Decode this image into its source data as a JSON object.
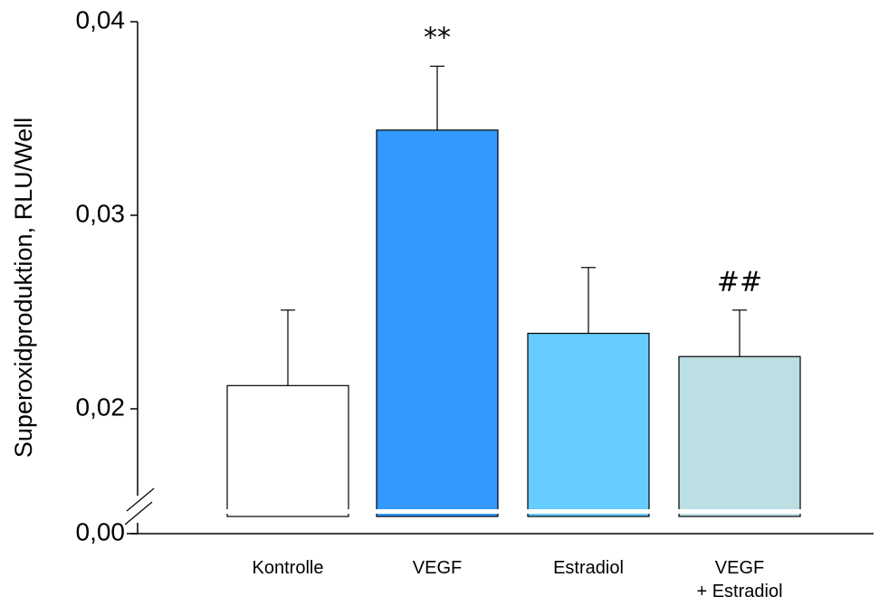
{
  "chart_data": {
    "type": "bar",
    "ylabel": "Superoxidproduktion, RLU/Well",
    "categories": [
      "Kontrolle",
      "VEGF",
      "Estradiol",
      "VEGF\n+ Estradiol"
    ],
    "values": [
      0.0212,
      0.0344,
      0.0239,
      0.0227
    ],
    "errors": [
      0.0039,
      0.0033,
      0.0034,
      0.0024
    ],
    "colors": [
      "#ffffff",
      "#3399ff",
      "#66ccff",
      "#bbdfe3"
    ],
    "annotations": [
      null,
      "**",
      null,
      "##"
    ],
    "ylim": [
      0,
      0.04
    ],
    "yticks": [
      {
        "value": 0,
        "label": "0,00"
      },
      {
        "value": 0.02,
        "label": "0,02"
      },
      {
        "value": 0.03,
        "label": "0,03"
      },
      {
        "value": 0.04,
        "label": "0,04"
      }
    ],
    "axis_break": true
  }
}
